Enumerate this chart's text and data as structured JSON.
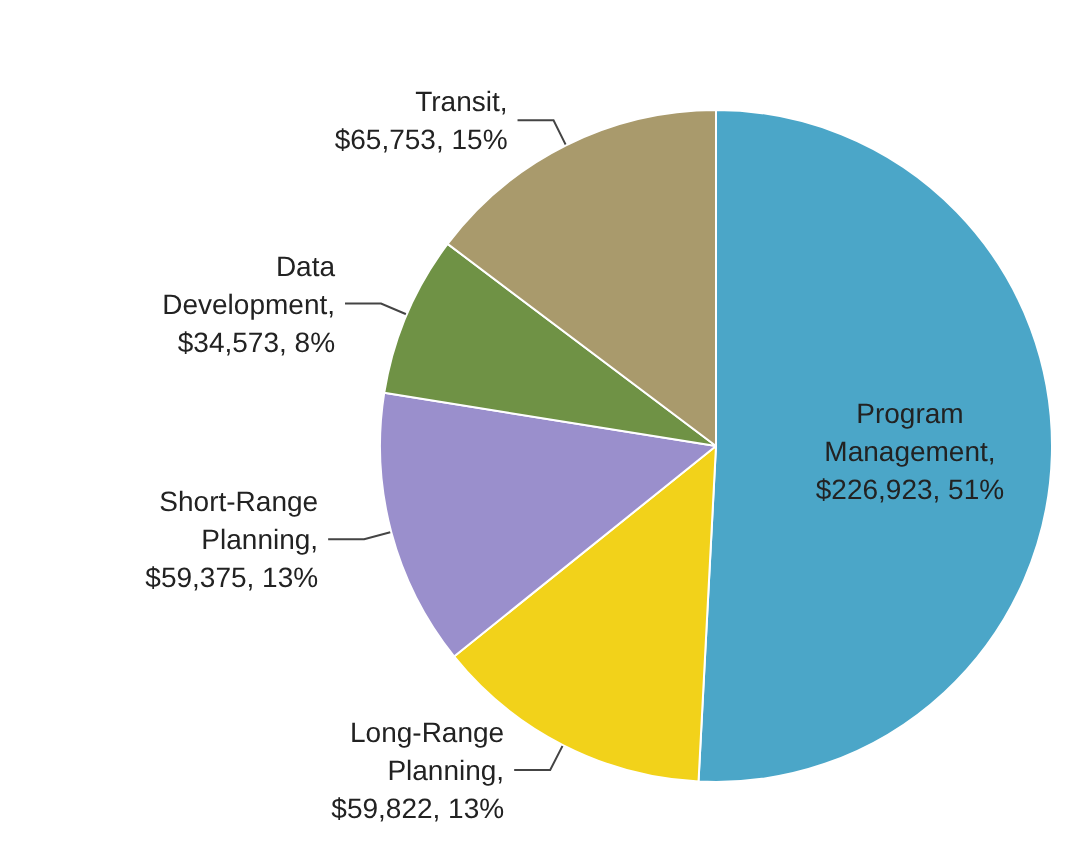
{
  "chart_data": {
    "type": "pie",
    "categories": [
      "Program Management",
      "Long-Range Planning",
      "Short-Range Planning",
      "Data Development",
      "Transit"
    ],
    "values": [
      226923,
      59822,
      59375,
      34573,
      65753
    ],
    "value_labels": [
      ", $226,923, 51%",
      ", $59,822, 13%",
      ", $59,375, 13%",
      ", $34,573, 8%",
      ", $65,753, 15%"
    ],
    "colors": [
      "#4ba6c8",
      "#f2d21a",
      "#9a8fcc",
      "#6f9245",
      "#a99a6c"
    ],
    "legend": false
  }
}
